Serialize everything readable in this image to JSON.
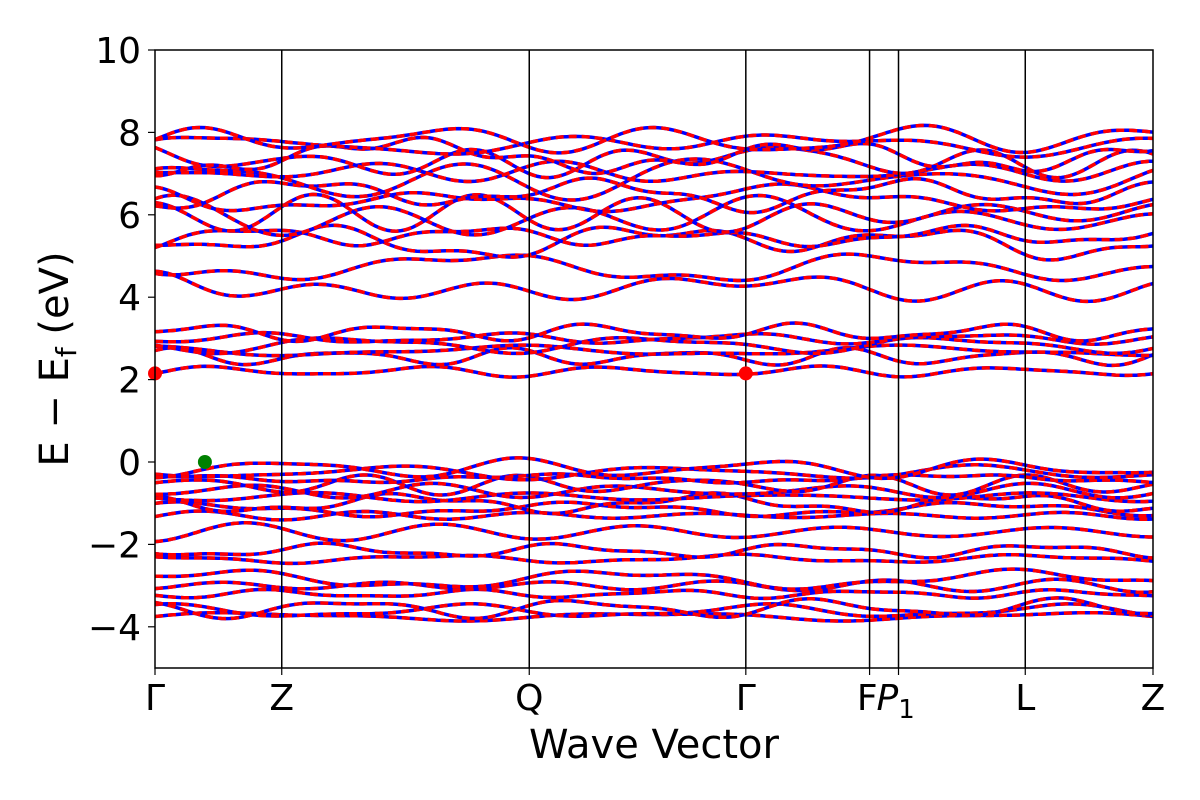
{
  "chart_data": {
    "type": "line",
    "title": "",
    "xlabel": "Wave Vector",
    "ylabel": "E − E_f (eV)",
    "ylabel_parts": {
      "pre": "E − E",
      "sub": "f",
      "post": " (eV)"
    },
    "ylim": [
      -5,
      10
    ],
    "y_ticks": [
      -4,
      -2,
      0,
      2,
      4,
      6,
      8,
      10
    ],
    "y_tick_labels": [
      "−4",
      "−2",
      "0",
      "2",
      "4",
      "6",
      "8",
      "10"
    ],
    "x_range": [
      0,
      1
    ],
    "kpoints": [
      {
        "label": "Γ",
        "pos": 0.0
      },
      {
        "label": "Z",
        "pos": 0.127
      },
      {
        "label": "Q",
        "pos": 0.375
      },
      {
        "label": "Γ",
        "pos": 0.592
      },
      {
        "label": "F",
        "pos": 0.716
      },
      {
        "label": "P",
        "sub": "1",
        "pos": 0.745
      },
      {
        "label": "L",
        "pos": 0.872
      },
      {
        "label": "Z",
        "pos": 1.0
      }
    ],
    "series": [
      {
        "name": "",
        "color": "#0000ff",
        "style": "solid"
      },
      {
        "name": "",
        "color": "#ff0000",
        "style": "dashed"
      }
    ],
    "band_baselines_eV": [
      -3.75,
      -3.62,
      -3.55,
      -3.2,
      -3.0,
      -2.85,
      -2.35,
      -2.15,
      -1.7,
      -1.3,
      -1.15,
      -1.0,
      -0.85,
      -0.7,
      -0.55,
      -0.4,
      -0.25,
      -0.15,
      2.2,
      2.55,
      2.7,
      2.85,
      3.0,
      3.15,
      4.15,
      4.75,
      5.3,
      5.5,
      5.85,
      6.05,
      6.3,
      6.55,
      6.8,
      7.05,
      7.25,
      7.45,
      7.65,
      7.85
    ],
    "markers": [
      {
        "name": "valence-band-maximum",
        "x": 0.05,
        "y": 0.0,
        "color": "#008000"
      },
      {
        "name": "conduction-band-minimum",
        "x": 0.0,
        "y": 2.15,
        "color": "#ff0000"
      },
      {
        "name": "conduction-band-minimum",
        "x": 0.592,
        "y": 2.15,
        "color": "#ff0000"
      }
    ],
    "grid": false,
    "legend": "none"
  }
}
